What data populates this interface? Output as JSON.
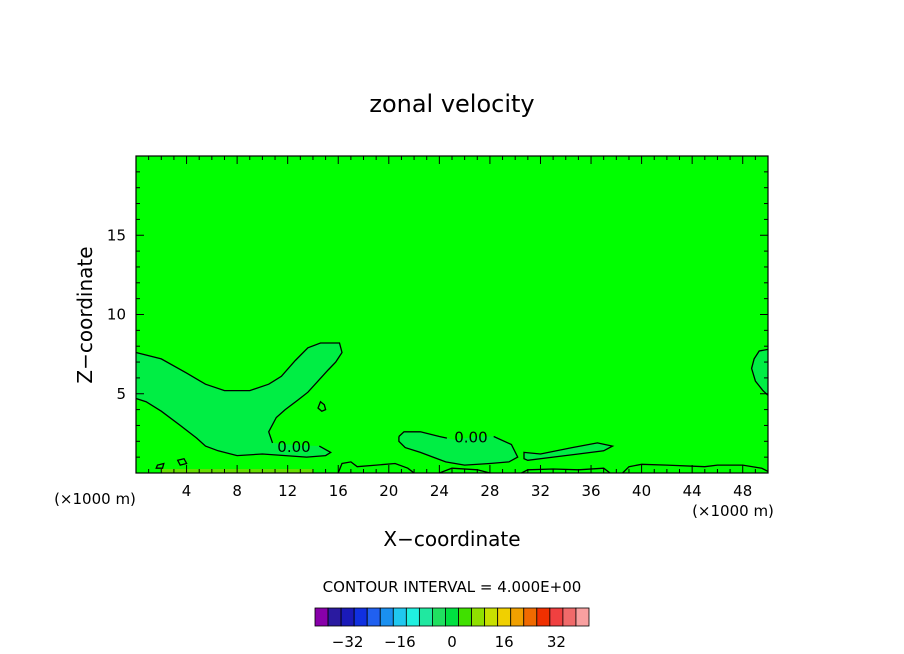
{
  "chart_data": {
    "type": "contour",
    "title": "zonal velocity",
    "xlabel": "X−coordinate",
    "ylabel": "Z−coordinate",
    "x_unit_left": "(×1000 m)",
    "x_unit_right": "(×1000 m)",
    "xlim": [
      0,
      50
    ],
    "ylim": [
      0,
      20
    ],
    "x_ticks": [
      {
        "v": 4,
        "label": "4"
      },
      {
        "v": 8,
        "label": "8"
      },
      {
        "v": 12,
        "label": "12"
      },
      {
        "v": 16,
        "label": "16"
      },
      {
        "v": 20,
        "label": "20"
      },
      {
        "v": 24,
        "label": "24"
      },
      {
        "v": 28,
        "label": "28"
      },
      {
        "v": 32,
        "label": "32"
      },
      {
        "v": 36,
        "label": "36"
      },
      {
        "v": 40,
        "label": "40"
      },
      {
        "v": 44,
        "label": "44"
      },
      {
        "v": 48,
        "label": "48"
      }
    ],
    "y_ticks": [
      {
        "v": 5,
        "label": "5"
      },
      {
        "v": 10,
        "label": "10"
      },
      {
        "v": 15,
        "label": "15"
      }
    ],
    "background_fill": "#00ff00",
    "contour_interval_text": "CONTOUR INTERVAL = 4.000E+00",
    "contour_labels": [
      {
        "text": "0.00",
        "x": 12.5,
        "y": 1.7
      },
      {
        "text": "0.00",
        "x": 26.5,
        "y": 2.3
      }
    ],
    "regions": [
      {
        "name": "negative-region-left",
        "fill": "#00ee44",
        "points": [
          [
            0,
            7.6
          ],
          [
            2,
            7.2
          ],
          [
            4,
            6.3
          ],
          [
            5.5,
            5.6
          ],
          [
            7,
            5.2
          ],
          [
            9,
            5.2
          ],
          [
            10.5,
            5.6
          ],
          [
            11.5,
            6.1
          ],
          [
            12.6,
            7.1
          ],
          [
            13.6,
            7.9
          ],
          [
            14.6,
            8.2
          ],
          [
            16.1,
            8.2
          ],
          [
            16.3,
            7.6
          ],
          [
            15.8,
            7.0
          ],
          [
            15.2,
            6.5
          ],
          [
            14.4,
            5.8
          ],
          [
            13.6,
            5.1
          ],
          [
            12.8,
            4.6
          ],
          [
            11.8,
            4.0
          ],
          [
            11.1,
            3.5
          ],
          [
            10.5,
            2.6
          ],
          [
            10.8,
            1.9
          ],
          [
            12.0,
            1.8
          ],
          [
            14.5,
            1.7
          ],
          [
            15.4,
            1.3
          ],
          [
            15.0,
            1.1
          ],
          [
            13.5,
            1.0
          ],
          [
            10.0,
            1.2
          ],
          [
            8.0,
            1.1
          ],
          [
            6.5,
            1.4
          ],
          [
            5.5,
            1.7
          ],
          [
            4.8,
            2.2
          ],
          [
            3.5,
            3.0
          ],
          [
            2.0,
            3.9
          ],
          [
            0.8,
            4.5
          ],
          [
            0,
            4.7
          ]
        ]
      },
      {
        "name": "negative-region-middle",
        "fill": "#00ee44",
        "points": [
          [
            20.8,
            2.3
          ],
          [
            21.2,
            2.6
          ],
          [
            22.5,
            2.6
          ],
          [
            24.0,
            2.3
          ],
          [
            25.2,
            2.1
          ],
          [
            27.0,
            2.3
          ],
          [
            28.5,
            2.3
          ],
          [
            29.7,
            1.8
          ],
          [
            30.2,
            1.0
          ],
          [
            29.5,
            0.7
          ],
          [
            28.0,
            0.6
          ],
          [
            26.0,
            0.5
          ],
          [
            24.5,
            0.7
          ],
          [
            23.5,
            1.0
          ],
          [
            22.5,
            1.3
          ],
          [
            21.3,
            1.6
          ],
          [
            20.8,
            2.0
          ]
        ]
      },
      {
        "name": "negative-region-right",
        "fill": "#00ee44",
        "points": [
          [
            30.7,
            1.3
          ],
          [
            32.0,
            1.2
          ],
          [
            34.5,
            1.6
          ],
          [
            36.5,
            1.9
          ],
          [
            37.7,
            1.7
          ],
          [
            37.0,
            1.4
          ],
          [
            35.0,
            1.2
          ],
          [
            33.0,
            1.0
          ],
          [
            31.0,
            0.8
          ],
          [
            30.7,
            0.9
          ]
        ]
      },
      {
        "name": "negative-region-top-right",
        "fill": "#00ee44",
        "points": [
          [
            50,
            7.8
          ],
          [
            49.3,
            7.7
          ],
          [
            48.9,
            7.2
          ],
          [
            48.7,
            6.6
          ],
          [
            49.0,
            5.8
          ],
          [
            49.6,
            5.2
          ],
          [
            50,
            4.9
          ]
        ]
      }
    ],
    "contour_lines": [
      {
        "closed": false,
        "points": [
          [
            0,
            7.6
          ],
          [
            2,
            7.2
          ],
          [
            4,
            6.3
          ],
          [
            5.5,
            5.6
          ],
          [
            7,
            5.2
          ],
          [
            9,
            5.2
          ],
          [
            10.5,
            5.6
          ],
          [
            11.5,
            6.1
          ],
          [
            12.6,
            7.1
          ],
          [
            13.6,
            7.9
          ],
          [
            14.6,
            8.2
          ],
          [
            16.1,
            8.2
          ],
          [
            16.3,
            7.6
          ],
          [
            15.8,
            7.0
          ],
          [
            15.2,
            6.5
          ],
          [
            14.4,
            5.8
          ],
          [
            13.6,
            5.1
          ],
          [
            12.8,
            4.6
          ],
          [
            11.8,
            4.0
          ],
          [
            11.1,
            3.5
          ],
          [
            10.5,
            2.6
          ],
          [
            10.8,
            1.9
          ]
        ]
      },
      {
        "closed": false,
        "points": [
          [
            14.5,
            1.7
          ],
          [
            15.4,
            1.3
          ],
          [
            15.0,
            1.1
          ],
          [
            13.5,
            1.0
          ],
          [
            10.0,
            1.2
          ],
          [
            8.0,
            1.1
          ],
          [
            6.5,
            1.4
          ],
          [
            5.5,
            1.7
          ],
          [
            4.8,
            2.2
          ],
          [
            3.5,
            3.0
          ],
          [
            2.0,
            3.9
          ],
          [
            0.8,
            4.5
          ],
          [
            0,
            4.7
          ]
        ]
      },
      {
        "closed": true,
        "points": [
          [
            14.6,
            4.5
          ],
          [
            14.9,
            4.3
          ],
          [
            15.0,
            4.0
          ],
          [
            14.7,
            3.9
          ],
          [
            14.4,
            4.1
          ]
        ]
      },
      {
        "closed": false,
        "points": [
          [
            20.8,
            2.3
          ],
          [
            21.2,
            2.6
          ],
          [
            22.5,
            2.6
          ],
          [
            24.0,
            2.3
          ],
          [
            24.6,
            2.2
          ]
        ]
      },
      {
        "closed": false,
        "points": [
          [
            28.3,
            2.3
          ],
          [
            29.7,
            1.8
          ],
          [
            30.2,
            1.0
          ],
          [
            29.5,
            0.7
          ],
          [
            28.0,
            0.6
          ],
          [
            26.0,
            0.5
          ],
          [
            24.5,
            0.7
          ],
          [
            23.5,
            1.0
          ],
          [
            22.5,
            1.3
          ],
          [
            21.3,
            1.6
          ],
          [
            20.8,
            2.0
          ],
          [
            20.8,
            2.3
          ]
        ]
      },
      {
        "closed": true,
        "points": [
          [
            30.7,
            1.3
          ],
          [
            32.0,
            1.2
          ],
          [
            34.5,
            1.6
          ],
          [
            36.5,
            1.9
          ],
          [
            37.7,
            1.7
          ],
          [
            37.0,
            1.4
          ],
          [
            35.0,
            1.2
          ],
          [
            33.0,
            1.0
          ],
          [
            31.0,
            0.8
          ],
          [
            30.7,
            0.9
          ]
        ]
      },
      {
        "closed": false,
        "points": [
          [
            50,
            7.8
          ],
          [
            49.3,
            7.7
          ],
          [
            48.9,
            7.2
          ],
          [
            48.7,
            6.6
          ],
          [
            49.0,
            5.8
          ],
          [
            49.6,
            5.2
          ],
          [
            50,
            4.9
          ]
        ]
      },
      {
        "closed": false,
        "points": [
          [
            16.0,
            0
          ],
          [
            16.3,
            0.6
          ],
          [
            17.0,
            0.7
          ],
          [
            17.5,
            0.4
          ],
          [
            19.0,
            0.5
          ],
          [
            20.5,
            0.6
          ],
          [
            21.5,
            0.3
          ],
          [
            22.0,
            0
          ]
        ]
      },
      {
        "closed": false,
        "points": [
          [
            38.5,
            0
          ],
          [
            39.0,
            0.4
          ],
          [
            40.0,
            0.55
          ],
          [
            42.0,
            0.5
          ],
          [
            45.0,
            0.4
          ],
          [
            46.0,
            0.5
          ],
          [
            48.0,
            0.5
          ],
          [
            49.5,
            0.3
          ],
          [
            50,
            0.1
          ]
        ]
      },
      {
        "closed": true,
        "points": [
          [
            3.3,
            0.8
          ],
          [
            3.8,
            0.9
          ],
          [
            4.0,
            0.6
          ],
          [
            3.5,
            0.5
          ]
        ]
      },
      {
        "closed": true,
        "points": [
          [
            1.7,
            0.5
          ],
          [
            2.2,
            0.6
          ],
          [
            2.1,
            0.3
          ],
          [
            1.6,
            0.3
          ]
        ]
      },
      {
        "closed": false,
        "points": [
          [
            24.0,
            0
          ],
          [
            25.0,
            0.3
          ],
          [
            27.0,
            0.2
          ],
          [
            28.0,
            0
          ]
        ]
      },
      {
        "closed": false,
        "points": [
          [
            30.5,
            0
          ],
          [
            31.0,
            0.2
          ],
          [
            33.0,
            0.25
          ],
          [
            35.0,
            0.2
          ],
          [
            37.0,
            0.3
          ],
          [
            37.5,
            0
          ]
        ]
      }
    ],
    "colorbar": {
      "colors": [
        "#8800aa",
        "#2a1aa0",
        "#1a1ab8",
        "#1030e0",
        "#2060f0",
        "#1a90f0",
        "#20c8f0",
        "#20f0e0",
        "#20e8a0",
        "#20e060",
        "#00e040",
        "#40e000",
        "#90e000",
        "#c8e000",
        "#f0d000",
        "#f0a000",
        "#f06a00",
        "#f03000",
        "#f04040",
        "#f06a6a",
        "#f8a0a0"
      ],
      "tick_labels": [
        {
          "index": 2,
          "label": "−32"
        },
        {
          "index": 6,
          "label": "−16"
        },
        {
          "index": 10,
          "label": "0"
        },
        {
          "index": 14,
          "label": "16"
        },
        {
          "index": 18,
          "label": "32"
        }
      ]
    }
  }
}
